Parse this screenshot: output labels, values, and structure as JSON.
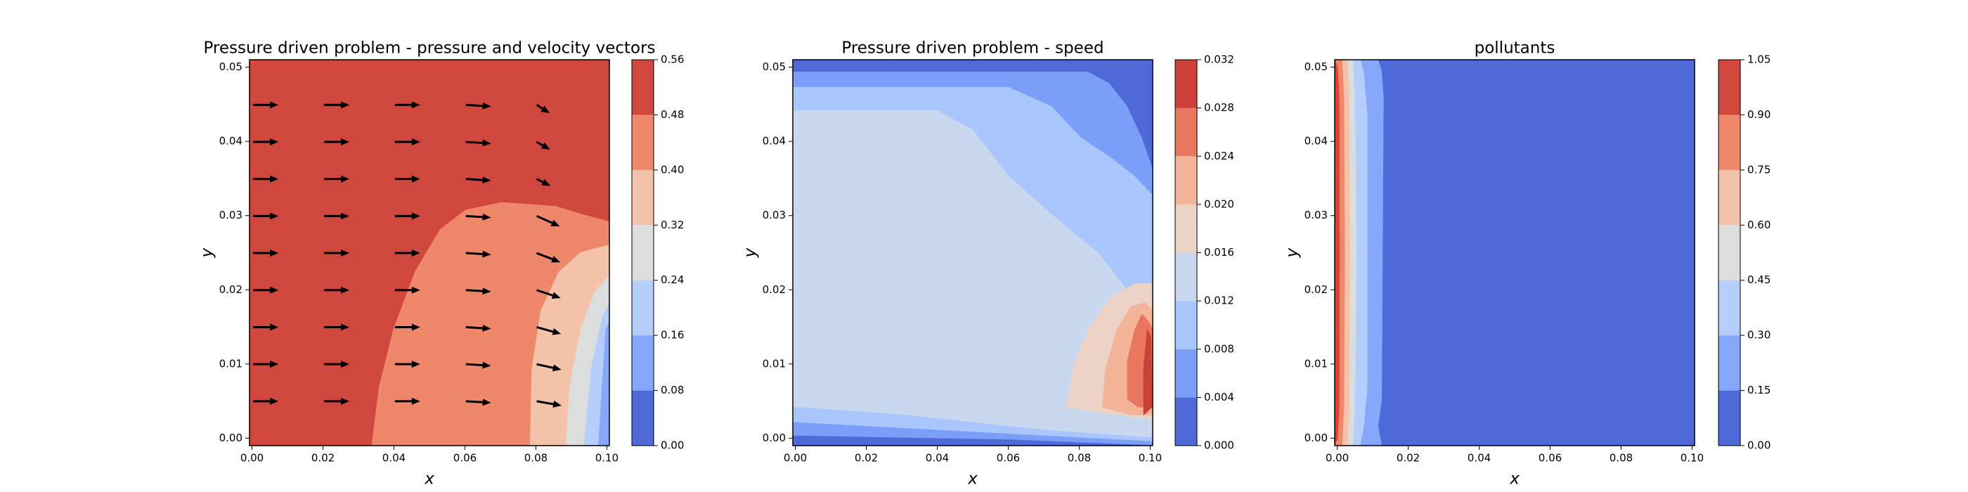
{
  "chart_data": [
    {
      "type": "contour",
      "title": "Pressure driven problem - pressure and velocity vectors",
      "xlabel": "x",
      "ylabel": "y",
      "xlim": [
        -0.0007,
        0.1007
      ],
      "ylim": [
        -0.001,
        0.051
      ],
      "xticks": [
        {
          "value": 0,
          "label": "0.00"
        },
        0.02,
        0.04,
        0.06,
        0.08,
        {
          "value": 0.1,
          "label": "0.10"
        }
      ],
      "yticks": [
        {
          "value": 0,
          "label": "0.00"
        },
        0.01,
        0.02,
        0.03,
        0.04,
        0.05
      ],
      "quiver": true,
      "colorbar": {
        "levels": [
          {
            "value": 0,
            "label": "0.00"
          },
          0.08,
          0.16,
          0.24,
          0.32,
          {
            "value": 0.4,
            "label": "0.40"
          },
          0.48,
          0.56
        ],
        "colors": [
          "#4f69d9",
          "#85a8fc",
          "#b5cdfa",
          "#dcdddd",
          "#f5c2aa",
          "#ef886b",
          "#d0473d"
        ]
      }
    },
    {
      "type": "contour",
      "title": "Pressure driven problem - speed",
      "xlabel": "x",
      "ylabel": "y",
      "xlim": [
        -0.0007,
        0.1007
      ],
      "ylim": [
        -0.001,
        0.051
      ],
      "xticks": [
        {
          "value": 0,
          "label": "0.00"
        },
        0.02,
        0.04,
        0.06,
        0.08,
        {
          "value": 0.1,
          "label": "0.10"
        }
      ],
      "yticks": [
        {
          "value": 0,
          "label": "0.00"
        },
        0.01,
        0.02,
        0.03,
        0.04,
        0.05
      ],
      "quiver": false,
      "colorbar": {
        "levels": [
          {
            "value": 0,
            "label": "0.000"
          },
          0.004,
          0.008,
          0.012,
          0.016,
          {
            "value": 0.02,
            "label": "0.020"
          },
          0.024,
          0.028,
          0.032
        ],
        "colors": [
          "#4f69d9",
          "#7b9ff9",
          "#a9c6fd",
          "#cad8ef",
          "#ecd3c5",
          "#f4b49a",
          "#e8775e",
          "#cc403a"
        ]
      }
    },
    {
      "type": "contour",
      "title": "pollutants",
      "xlabel": "x",
      "ylabel": "y",
      "xlim": [
        -0.0007,
        0.1007
      ],
      "ylim": [
        -0.001,
        0.051
      ],
      "xticks": [
        {
          "value": 0,
          "label": "0.00"
        },
        0.02,
        0.04,
        0.06,
        0.08,
        {
          "value": 0.1,
          "label": "0.10"
        }
      ],
      "yticks": [
        {
          "value": 0,
          "label": "0.00"
        },
        0.01,
        0.02,
        0.03,
        0.04,
        0.05
      ],
      "quiver": false,
      "colorbar": {
        "levels": [
          {
            "value": 0,
            "label": "0.00"
          },
          0.15,
          {
            "value": 0.3,
            "label": "0.30"
          },
          0.45,
          {
            "value": 0.6,
            "label": "0.60"
          },
          0.75,
          {
            "value": 0.9,
            "label": "0.90"
          },
          1.05
        ],
        "colors": [
          "#4f69d9",
          "#85a8fc",
          "#b5cdfa",
          "#dcdddd",
          "#f5c2aa",
          "#ef886b",
          "#d0473d"
        ]
      }
    }
  ]
}
